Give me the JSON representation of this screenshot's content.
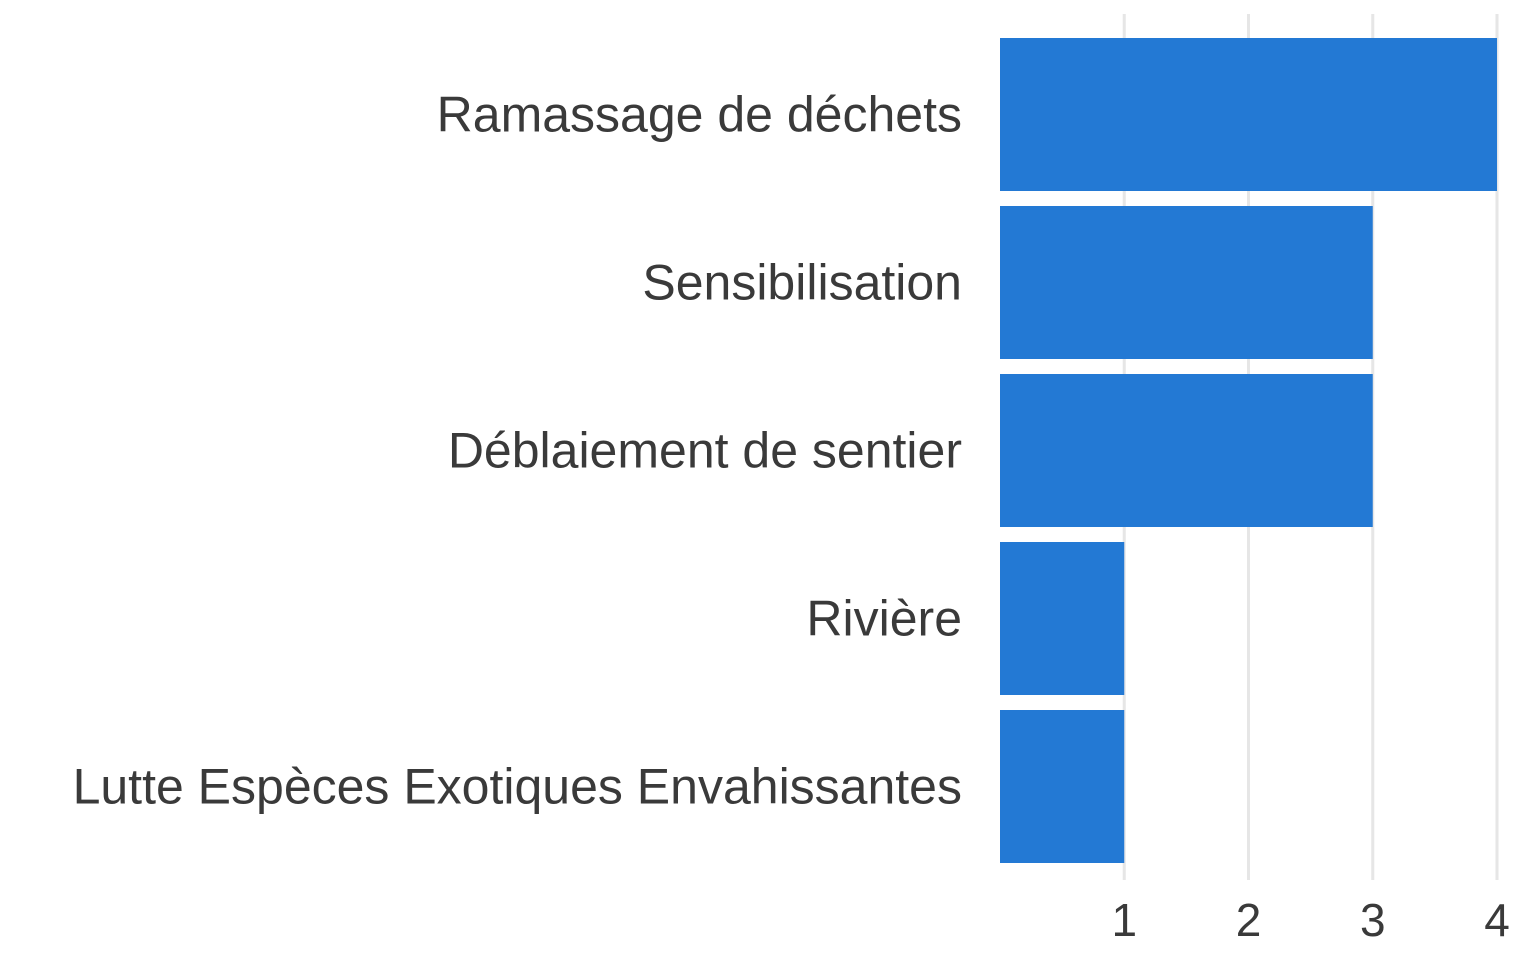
{
  "chart_data": {
    "type": "bar",
    "orientation": "horizontal",
    "categories": [
      "Ramassage de déchets",
      "Sensibilisation",
      "Déblaiement de sentier",
      "Rivière",
      "Lutte Espèces Exotiques Envahissantes"
    ],
    "values": [
      4,
      3,
      3,
      1,
      1
    ],
    "title": "",
    "xlabel": "",
    "ylabel": "",
    "xlim": [
      0,
      4
    ],
    "x_ticks": [
      "1",
      "2",
      "3",
      "4"
    ],
    "grid": "vertical",
    "legend": "none",
    "bar_color": "#2379d4"
  }
}
